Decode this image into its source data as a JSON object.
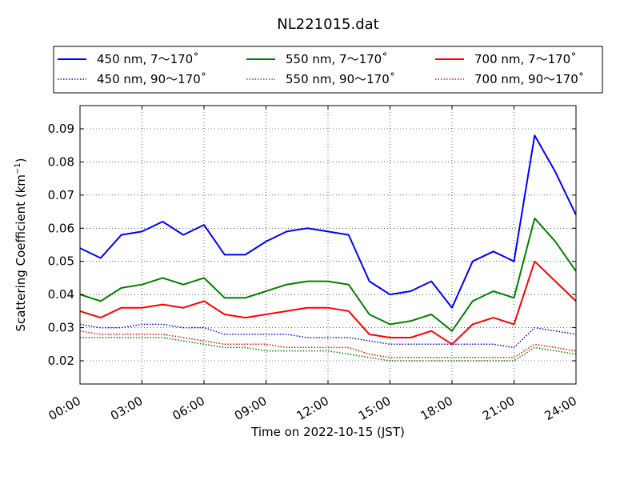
{
  "chart_data": {
    "type": "line",
    "title": "NL221015.dat",
    "xlabel": "Time on 2022-10-15 (JST)",
    "ylabel": "Scattering Coefficient (km",
    "ylabel_exponent": "−1",
    "ylabel_close": ")",
    "xlim": [
      "00:00",
      "24:00"
    ],
    "ylim": [
      0.013,
      0.097
    ],
    "x_ticks": [
      "00:00",
      "03:00",
      "06:00",
      "09:00",
      "12:00",
      "15:00",
      "18:00",
      "21:00",
      "24:00"
    ],
    "y_ticks": [
      "0.02",
      "0.03",
      "0.04",
      "0.05",
      "0.06",
      "0.07",
      "0.08",
      "0.09"
    ],
    "grid": true,
    "legend_position": "top-center",
    "colors": {
      "blue": "#0000ff",
      "green": "#008000",
      "red": "#ff0000"
    },
    "x": [
      "00:00",
      "01:00",
      "02:00",
      "03:00",
      "04:00",
      "05:00",
      "06:00",
      "07:00",
      "08:00",
      "09:00",
      "10:00",
      "11:00",
      "12:00",
      "13:00",
      "14:00",
      "15:00",
      "16:00",
      "17:00",
      "18:00",
      "19:00",
      "20:00",
      "21:00",
      "22:00",
      "23:00",
      "24:00"
    ],
    "series": [
      {
        "name": "450 nm, 7～170˚",
        "color": "#0000ff",
        "style": "solid",
        "values": [
          0.054,
          0.051,
          0.058,
          0.059,
          0.062,
          0.058,
          0.061,
          0.052,
          0.052,
          0.056,
          0.059,
          0.06,
          0.059,
          0.058,
          0.044,
          0.04,
          0.041,
          0.044,
          0.036,
          0.05,
          0.053,
          0.05,
          0.088,
          0.077,
          0.064
        ]
      },
      {
        "name": "450 nm, 90～170˚",
        "color": "#0000ff",
        "style": "dotted",
        "values": [
          0.031,
          0.03,
          0.03,
          0.031,
          0.031,
          0.03,
          0.03,
          0.028,
          0.028,
          0.028,
          0.028,
          0.027,
          0.027,
          0.027,
          0.026,
          0.025,
          0.025,
          0.025,
          0.025,
          0.025,
          0.025,
          0.024,
          0.03,
          0.029,
          0.028
        ]
      },
      {
        "name": "550 nm, 7～170˚",
        "color": "#008000",
        "style": "solid",
        "values": [
          0.04,
          0.038,
          0.042,
          0.043,
          0.045,
          0.043,
          0.045,
          0.039,
          0.039,
          0.041,
          0.043,
          0.044,
          0.044,
          0.043,
          0.034,
          0.031,
          0.032,
          0.034,
          0.029,
          0.038,
          0.041,
          0.039,
          0.063,
          0.056,
          0.047
        ]
      },
      {
        "name": "550 nm, 90～170˚",
        "color": "#008000",
        "style": "dotted",
        "values": [
          0.027,
          0.027,
          0.027,
          0.027,
          0.027,
          0.026,
          0.025,
          0.024,
          0.024,
          0.023,
          0.023,
          0.023,
          0.023,
          0.022,
          0.021,
          0.02,
          0.02,
          0.02,
          0.02,
          0.02,
          0.02,
          0.02,
          0.024,
          0.023,
          0.022
        ]
      },
      {
        "name": "700 nm, 7～170˚",
        "color": "#ff0000",
        "style": "solid",
        "values": [
          0.035,
          0.033,
          0.036,
          0.036,
          0.037,
          0.036,
          0.038,
          0.034,
          0.033,
          0.034,
          0.035,
          0.036,
          0.036,
          0.035,
          0.028,
          0.027,
          0.027,
          0.029,
          0.025,
          0.031,
          0.033,
          0.031,
          0.05,
          0.044,
          0.038
        ]
      },
      {
        "name": "700 nm, 90～170˚",
        "color": "#ff0000",
        "style": "dotted",
        "values": [
          0.029,
          0.028,
          0.028,
          0.028,
          0.028,
          0.027,
          0.026,
          0.025,
          0.025,
          0.025,
          0.024,
          0.024,
          0.024,
          0.024,
          0.022,
          0.021,
          0.021,
          0.021,
          0.021,
          0.021,
          0.021,
          0.021,
          0.025,
          0.024,
          0.023
        ]
      }
    ]
  }
}
